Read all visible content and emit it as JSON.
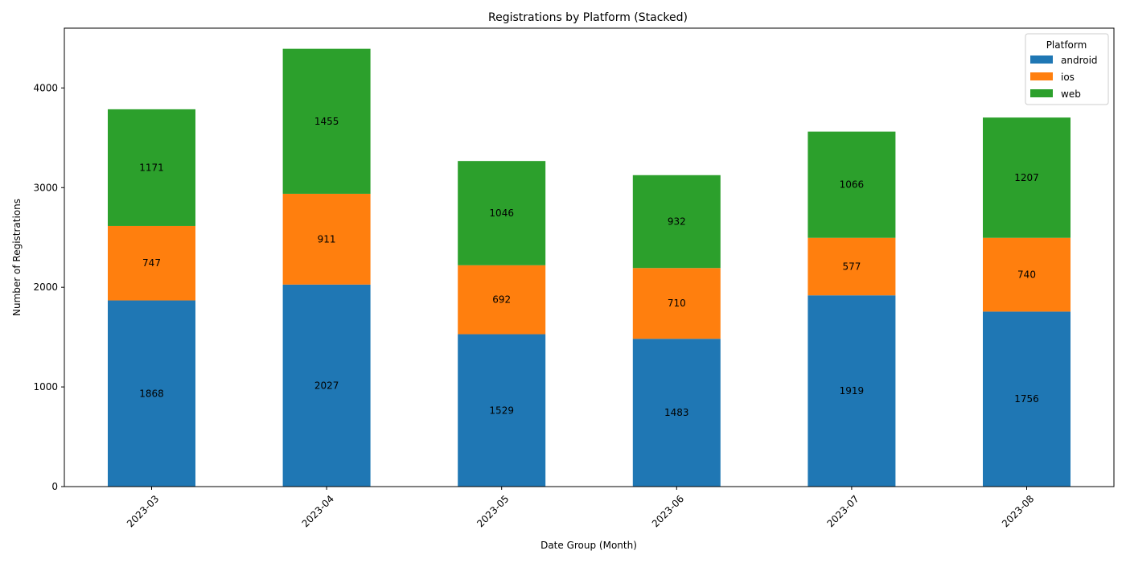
{
  "chart_data": {
    "type": "bar",
    "stacked": true,
    "title": "Registrations by Platform (Stacked)",
    "xlabel": "Date Group (Month)",
    "ylabel": "Number of Registrations",
    "categories": [
      "2023-03",
      "2023-04",
      "2023-05",
      "2023-06",
      "2023-07",
      "2023-08"
    ],
    "series": [
      {
        "name": "android",
        "color": "#1f77b4",
        "values": [
          1868,
          2027,
          1529,
          1483,
          1919,
          1756
        ]
      },
      {
        "name": "ios",
        "color": "#ff7f0e",
        "values": [
          747,
          911,
          692,
          710,
          577,
          740
        ]
      },
      {
        "name": "web",
        "color": "#2ca02c",
        "values": [
          1171,
          1455,
          1046,
          932,
          1066,
          1207
        ]
      }
    ],
    "ylim": [
      0,
      4600
    ],
    "yticks": [
      0,
      1000,
      2000,
      3000,
      4000
    ],
    "legend": {
      "title": "Platform",
      "position": "top-right"
    },
    "grid": false,
    "x_tick_rotation": 45
  }
}
